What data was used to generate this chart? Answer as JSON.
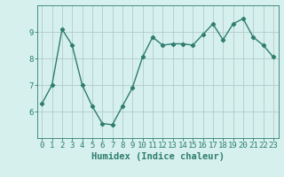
{
  "x": [
    0,
    1,
    2,
    3,
    4,
    5,
    6,
    7,
    8,
    9,
    10,
    11,
    12,
    13,
    14,
    15,
    16,
    17,
    18,
    19,
    20,
    21,
    22,
    23
  ],
  "y": [
    6.3,
    7.0,
    9.1,
    8.5,
    7.0,
    6.2,
    5.55,
    5.5,
    6.2,
    6.9,
    8.05,
    8.8,
    8.5,
    8.55,
    8.55,
    8.5,
    8.9,
    9.3,
    8.7,
    9.3,
    9.5,
    8.8,
    8.5,
    8.05
  ],
  "line_color": "#2e7d6e",
  "marker": "D",
  "marker_size": 2.2,
  "bg_color": "#d6f0ee",
  "grid_color": "#b0cccb",
  "xlabel": "Humidex (Indice chaleur)",
  "ylim": [
    5.0,
    10.0
  ],
  "xlim": [
    -0.5,
    23.5
  ],
  "yticks": [
    6,
    7,
    8,
    9
  ],
  "xticks": [
    0,
    1,
    2,
    3,
    4,
    5,
    6,
    7,
    8,
    9,
    10,
    11,
    12,
    13,
    14,
    15,
    16,
    17,
    18,
    19,
    20,
    21,
    22,
    23
  ],
  "tick_color": "#2e7d6e",
  "xlabel_fontsize": 7.5,
  "tick_fontsize": 6.5,
  "line_width": 1.0
}
